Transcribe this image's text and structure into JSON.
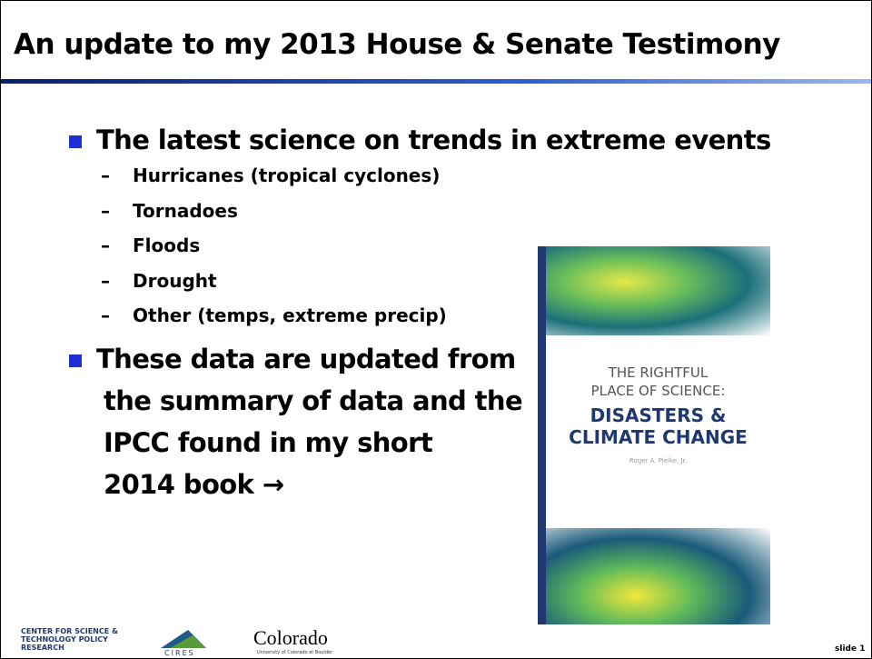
{
  "header": {
    "title": "An update to my 2013 House & Senate Testimony"
  },
  "bullets": [
    {
      "lines": [
        "The latest science on trends in extreme events"
      ],
      "sub": [
        "Hurricanes (tropical cyclones)",
        "Tornadoes",
        "Floods",
        "Drought",
        "Other (temps, extreme precip)"
      ]
    },
    {
      "lines": [
        "These data are updated from",
        "the summary of data and the",
        "IPCC found in my short",
        "2014 book →"
      ]
    }
  ],
  "book": {
    "top": [
      "THE RIGHTFUL",
      "PLACE OF SCIENCE:"
    ],
    "title": [
      "DISASTERS &",
      "CLIMATE CHANGE"
    ],
    "author": "Roger A. Pielke, Jr."
  },
  "footer": {
    "logos": [
      "CENTER FOR SCIENCE & TECHNOLOGY POLICY RESEARCH",
      "CIRES",
      "Colorado",
      "University of Colorado at Boulder"
    ],
    "slide": "slide 1"
  }
}
